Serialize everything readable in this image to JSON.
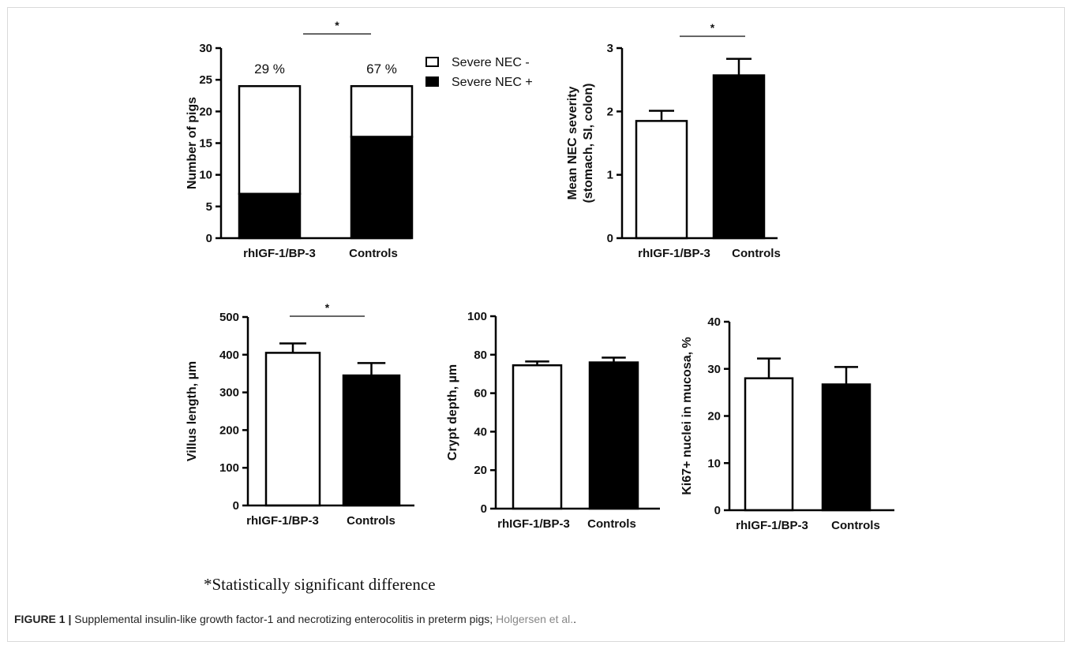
{
  "figure_caption": {
    "label": "FIGURE 1 |",
    "text": " Supplemental insulin-like growth factor-1 and necrotizing enterocolitis in preterm pigs; ",
    "authors": "Holgersen et al.",
    "end": "."
  },
  "footnote": "*Statistically significant difference",
  "chart_data": [
    {
      "type": "bar",
      "stacked": true,
      "ylabel": "Number of pigs",
      "ylim": [
        0,
        30
      ],
      "yticks": [
        0,
        5,
        10,
        15,
        20,
        25,
        30
      ],
      "categories": [
        "rhIGF-1/BP-3",
        "Controls"
      ],
      "series": [
        {
          "name": "Severe NEC +",
          "values": [
            7,
            16
          ],
          "color": "#000000"
        },
        {
          "name": "Severe NEC -",
          "values": [
            17,
            8
          ],
          "color": "#ffffff"
        }
      ],
      "top_labels": [
        "29 %",
        "67 %"
      ],
      "significance": "*",
      "legend_position": "right"
    },
    {
      "type": "bar",
      "ylabel": "Mean NEC severity\n(stomach, SI, colon)",
      "ylim": [
        0,
        3
      ],
      "yticks": [
        0,
        1,
        2,
        3
      ],
      "categories": [
        "rhIGF-1/BP-3",
        "Controls"
      ],
      "values": [
        1.85,
        2.57
      ],
      "errors": [
        0.16,
        0.26
      ],
      "fills": [
        "#ffffff",
        "#000000"
      ],
      "significance": "*"
    },
    {
      "type": "bar",
      "ylabel": "Villus length, µm",
      "ylim": [
        0,
        500
      ],
      "yticks": [
        0,
        100,
        200,
        300,
        400,
        500
      ],
      "categories": [
        "rhIGF-1/BP-3",
        "Controls"
      ],
      "values": [
        405,
        345
      ],
      "errors": [
        25,
        33
      ],
      "fills": [
        "#ffffff",
        "#000000"
      ],
      "significance": "*"
    },
    {
      "type": "bar",
      "ylabel": "Crypt depth, µm",
      "ylim": [
        0,
        100
      ],
      "yticks": [
        0,
        20,
        40,
        60,
        80,
        100
      ],
      "categories": [
        "rhIGF-1/BP-3",
        "Controls"
      ],
      "values": [
        74.5,
        76
      ],
      "errors": [
        2,
        2.5
      ],
      "fills": [
        "#ffffff",
        "#000000"
      ],
      "significance": ""
    },
    {
      "type": "bar",
      "ylabel": "Ki67+ nuclei in mucosa, %",
      "ylim": [
        0,
        40
      ],
      "yticks": [
        0,
        10,
        20,
        30,
        40
      ],
      "categories": [
        "rhIGF-1/BP-3",
        "Controls"
      ],
      "values": [
        28,
        26.7
      ],
      "errors": [
        4.2,
        3.7
      ],
      "fills": [
        "#ffffff",
        "#000000"
      ],
      "significance": ""
    }
  ]
}
